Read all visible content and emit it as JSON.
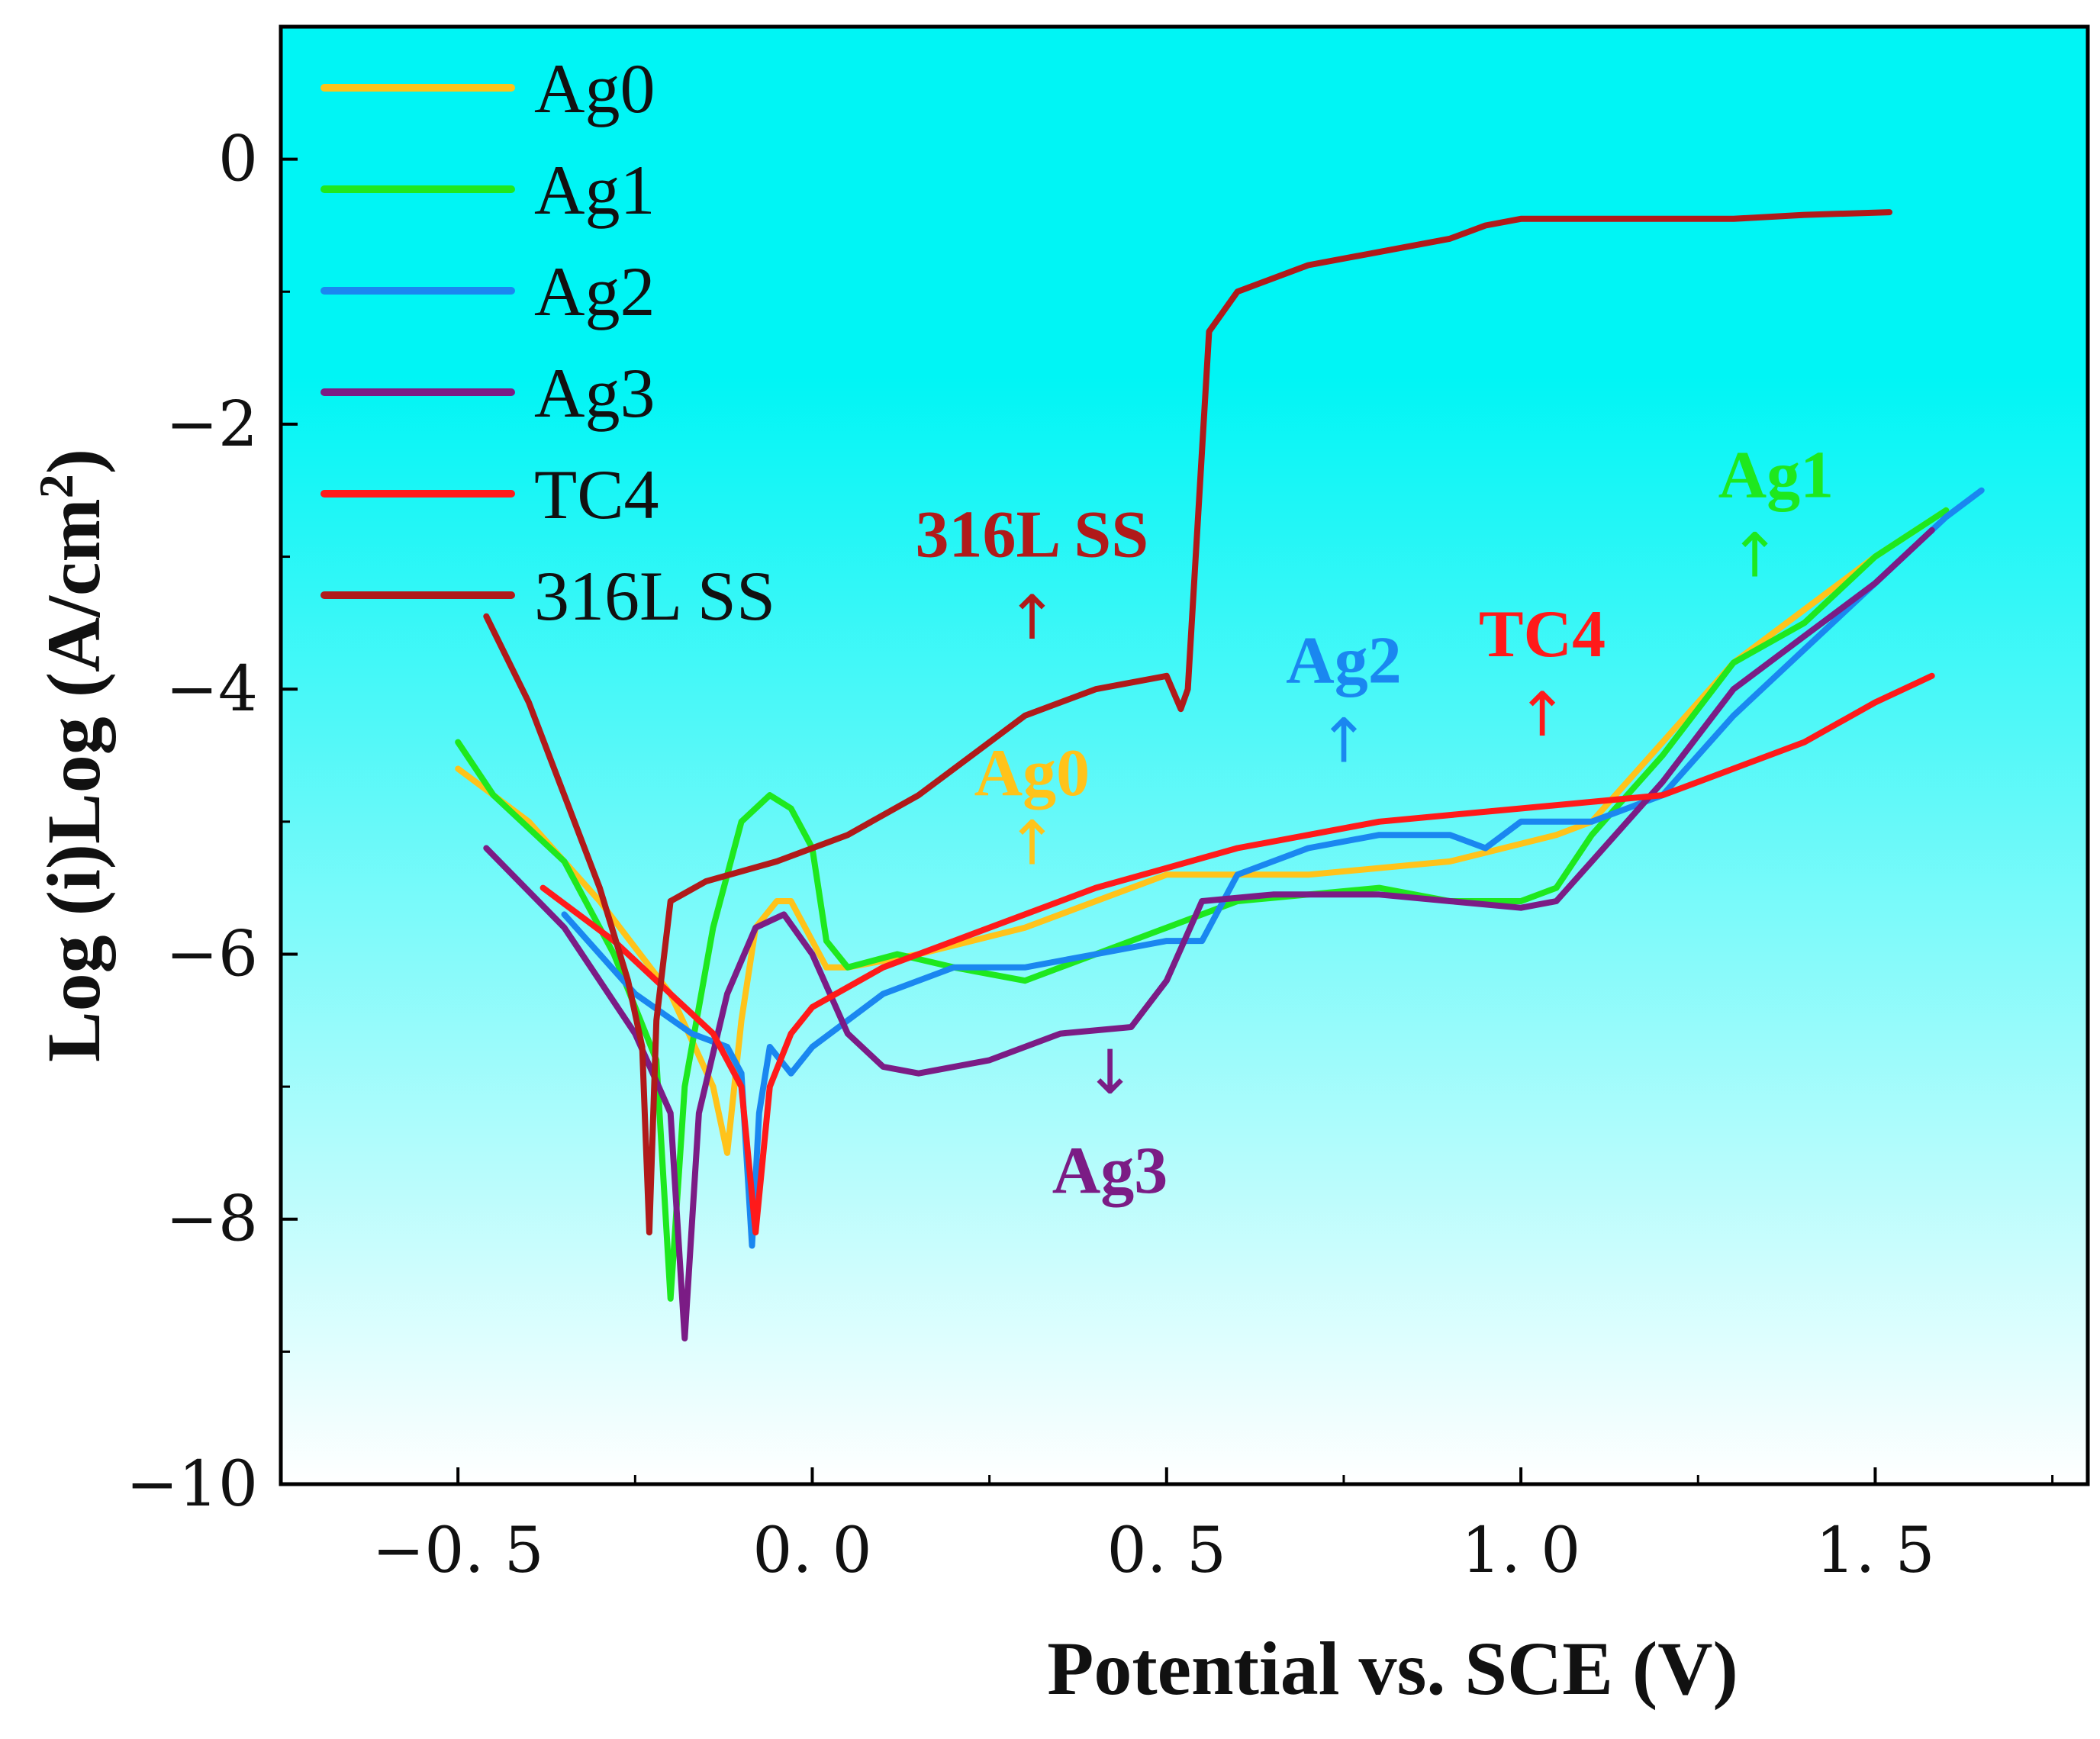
{
  "chart_data": {
    "type": "line",
    "xlabel": "Potential vs. SCE (V)",
    "ylabel": "Log (i)Log (A/cm",
    "ylabel_superscript": "2",
    "ylabel_close": ")",
    "xlim": [
      -0.75,
      1.8
    ],
    "ylim": [
      -10,
      1
    ],
    "xticks": [
      -0.5,
      0.0,
      0.5,
      1.0,
      1.5
    ],
    "xtick_labels": [
      "−0. 5",
      "0. 0",
      "0. 5",
      "1. 0",
      "1. 5"
    ],
    "yticks": [
      0,
      -2,
      -4,
      -6,
      -8,
      -10
    ],
    "ytick_labels": [
      "0",
      "−2",
      "−4",
      "−6",
      "−8",
      "−10"
    ],
    "background": {
      "top": "#00f5f5",
      "bottom": "#ffffff"
    },
    "legend_position": "top-left",
    "series": [
      {
        "name": "Ag0",
        "color": "#ffc31a",
        "points": [
          [
            -0.5,
            -4.6
          ],
          [
            -0.4,
            -5.0
          ],
          [
            -0.3,
            -5.6
          ],
          [
            -0.2,
            -6.3
          ],
          [
            -0.14,
            -7.0
          ],
          [
            -0.12,
            -7.5
          ],
          [
            -0.1,
            -6.5
          ],
          [
            -0.08,
            -5.8
          ],
          [
            -0.05,
            -5.6
          ],
          [
            -0.03,
            -5.6
          ],
          [
            0.0,
            -5.9
          ],
          [
            0.02,
            -6.1
          ],
          [
            0.05,
            -6.1
          ],
          [
            0.15,
            -6.0
          ],
          [
            0.3,
            -5.8
          ],
          [
            0.4,
            -5.6
          ],
          [
            0.5,
            -5.4
          ],
          [
            0.7,
            -5.4
          ],
          [
            0.9,
            -5.3
          ],
          [
            1.05,
            -5.1
          ],
          [
            1.1,
            -5.0
          ],
          [
            1.2,
            -4.4
          ],
          [
            1.3,
            -3.8
          ],
          [
            1.4,
            -3.4
          ],
          [
            1.5,
            -3.0
          ],
          [
            1.6,
            -2.65
          ]
        ]
      },
      {
        "name": "Ag1",
        "color": "#1ee81e",
        "points": [
          [
            -0.5,
            -4.4
          ],
          [
            -0.45,
            -4.8
          ],
          [
            -0.35,
            -5.3
          ],
          [
            -0.28,
            -6.0
          ],
          [
            -0.22,
            -6.8
          ],
          [
            -0.2,
            -8.6
          ],
          [
            -0.18,
            -7.0
          ],
          [
            -0.14,
            -5.8
          ],
          [
            -0.1,
            -5.0
          ],
          [
            -0.06,
            -4.8
          ],
          [
            -0.03,
            -4.9
          ],
          [
            0.0,
            -5.2
          ],
          [
            0.02,
            -5.9
          ],
          [
            0.05,
            -6.1
          ],
          [
            0.12,
            -6.0
          ],
          [
            0.2,
            -6.1
          ],
          [
            0.3,
            -6.2
          ],
          [
            0.4,
            -6.0
          ],
          [
            0.5,
            -5.8
          ],
          [
            0.6,
            -5.6
          ],
          [
            0.8,
            -5.5
          ],
          [
            0.9,
            -5.6
          ],
          [
            1.0,
            -5.6
          ],
          [
            1.05,
            -5.5
          ],
          [
            1.1,
            -5.1
          ],
          [
            1.2,
            -4.5
          ],
          [
            1.3,
            -3.8
          ],
          [
            1.4,
            -3.5
          ],
          [
            1.5,
            -3.0
          ],
          [
            1.6,
            -2.65
          ]
        ]
      },
      {
        "name": "Ag2",
        "color": "#1a87f0",
        "points": [
          [
            -0.35,
            -5.7
          ],
          [
            -0.25,
            -6.3
          ],
          [
            -0.17,
            -6.6
          ],
          [
            -0.12,
            -6.7
          ],
          [
            -0.1,
            -6.9
          ],
          [
            -0.085,
            -8.2
          ],
          [
            -0.075,
            -7.2
          ],
          [
            -0.06,
            -6.7
          ],
          [
            -0.03,
            -6.9
          ],
          [
            0.0,
            -6.7
          ],
          [
            0.05,
            -6.5
          ],
          [
            0.1,
            -6.3
          ],
          [
            0.2,
            -6.1
          ],
          [
            0.3,
            -6.1
          ],
          [
            0.4,
            -6.0
          ],
          [
            0.5,
            -5.9
          ],
          [
            0.55,
            -5.9
          ],
          [
            0.6,
            -5.4
          ],
          [
            0.7,
            -5.2
          ],
          [
            0.8,
            -5.1
          ],
          [
            0.9,
            -5.1
          ],
          [
            0.95,
            -5.2
          ],
          [
            1.0,
            -5.0
          ],
          [
            1.1,
            -5.0
          ],
          [
            1.2,
            -4.8
          ],
          [
            1.3,
            -4.2
          ],
          [
            1.4,
            -3.7
          ],
          [
            1.5,
            -3.2
          ],
          [
            1.6,
            -2.7
          ],
          [
            1.65,
            -2.5
          ]
        ]
      },
      {
        "name": "Ag3",
        "color": "#7b1c85",
        "points": [
          [
            -0.46,
            -5.2
          ],
          [
            -0.35,
            -5.8
          ],
          [
            -0.25,
            -6.6
          ],
          [
            -0.2,
            -7.2
          ],
          [
            -0.18,
            -8.9
          ],
          [
            -0.16,
            -7.2
          ],
          [
            -0.12,
            -6.3
          ],
          [
            -0.08,
            -5.8
          ],
          [
            -0.04,
            -5.7
          ],
          [
            0.0,
            -6.0
          ],
          [
            0.05,
            -6.6
          ],
          [
            0.1,
            -6.85
          ],
          [
            0.15,
            -6.9
          ],
          [
            0.25,
            -6.8
          ],
          [
            0.35,
            -6.6
          ],
          [
            0.45,
            -6.55
          ],
          [
            0.5,
            -6.2
          ],
          [
            0.55,
            -5.6
          ],
          [
            0.65,
            -5.55
          ],
          [
            0.8,
            -5.55
          ],
          [
            0.9,
            -5.6
          ],
          [
            1.0,
            -5.65
          ],
          [
            1.05,
            -5.6
          ],
          [
            1.1,
            -5.3
          ],
          [
            1.2,
            -4.7
          ],
          [
            1.3,
            -4.0
          ],
          [
            1.4,
            -3.6
          ],
          [
            1.5,
            -3.2
          ],
          [
            1.58,
            -2.8
          ]
        ]
      },
      {
        "name": "TC4",
        "color": "#ff1a1a",
        "points": [
          [
            -0.38,
            -5.5
          ],
          [
            -0.28,
            -5.9
          ],
          [
            -0.2,
            -6.3
          ],
          [
            -0.14,
            -6.6
          ],
          [
            -0.1,
            -7.0
          ],
          [
            -0.08,
            -8.1
          ],
          [
            -0.06,
            -7.0
          ],
          [
            -0.03,
            -6.6
          ],
          [
            0.0,
            -6.4
          ],
          [
            0.1,
            -6.1
          ],
          [
            0.2,
            -5.9
          ],
          [
            0.35,
            -5.6
          ],
          [
            0.4,
            -5.5
          ],
          [
            0.5,
            -5.35
          ],
          [
            0.6,
            -5.2
          ],
          [
            0.7,
            -5.1
          ],
          [
            0.8,
            -5.0
          ],
          [
            0.9,
            -4.95
          ],
          [
            1.0,
            -4.9
          ],
          [
            1.2,
            -4.8
          ],
          [
            1.3,
            -4.6
          ],
          [
            1.4,
            -4.4
          ],
          [
            1.5,
            -4.1
          ],
          [
            1.58,
            -3.9
          ]
        ]
      },
      {
        "name": "316L SS",
        "color": "#b01a1a",
        "points": [
          [
            -0.46,
            -3.45
          ],
          [
            -0.4,
            -4.1
          ],
          [
            -0.35,
            -4.8
          ],
          [
            -0.3,
            -5.5
          ],
          [
            -0.26,
            -6.2
          ],
          [
            -0.24,
            -6.7
          ],
          [
            -0.23,
            -8.1
          ],
          [
            -0.22,
            -6.5
          ],
          [
            -0.2,
            -5.6
          ],
          [
            -0.15,
            -5.45
          ],
          [
            -0.05,
            -5.3
          ],
          [
            0.05,
            -5.1
          ],
          [
            0.15,
            -4.8
          ],
          [
            0.3,
            -4.2
          ],
          [
            0.4,
            -4.0
          ],
          [
            0.5,
            -3.9
          ],
          [
            0.52,
            -4.15
          ],
          [
            0.53,
            -4.0
          ],
          [
            0.55,
            -2.2
          ],
          [
            0.56,
            -1.3
          ],
          [
            0.6,
            -1.0
          ],
          [
            0.7,
            -0.8
          ],
          [
            0.8,
            -0.7
          ],
          [
            0.9,
            -0.6
          ],
          [
            0.95,
            -0.5
          ],
          [
            1.0,
            -0.45
          ],
          [
            1.1,
            -0.45
          ],
          [
            1.2,
            -0.45
          ],
          [
            1.3,
            -0.45
          ],
          [
            1.4,
            -0.42
          ],
          [
            1.52,
            -0.4
          ]
        ]
      }
    ],
    "annotations": [
      {
        "text": "316L SS",
        "color": "#b01a1a",
        "arrow": "↑"
      },
      {
        "text": "Ag0",
        "color": "#ffc31a",
        "arrow": "↑"
      },
      {
        "text": "Ag2",
        "color": "#1a87f0",
        "arrow": "↑"
      },
      {
        "text": "TC4",
        "color": "#ff1a1a",
        "arrow": "↑"
      },
      {
        "text": "Ag1",
        "color": "#1ee81e",
        "arrow": "↑"
      },
      {
        "text": "Ag3",
        "color": "#7b1c85",
        "arrow": "↓"
      }
    ]
  }
}
